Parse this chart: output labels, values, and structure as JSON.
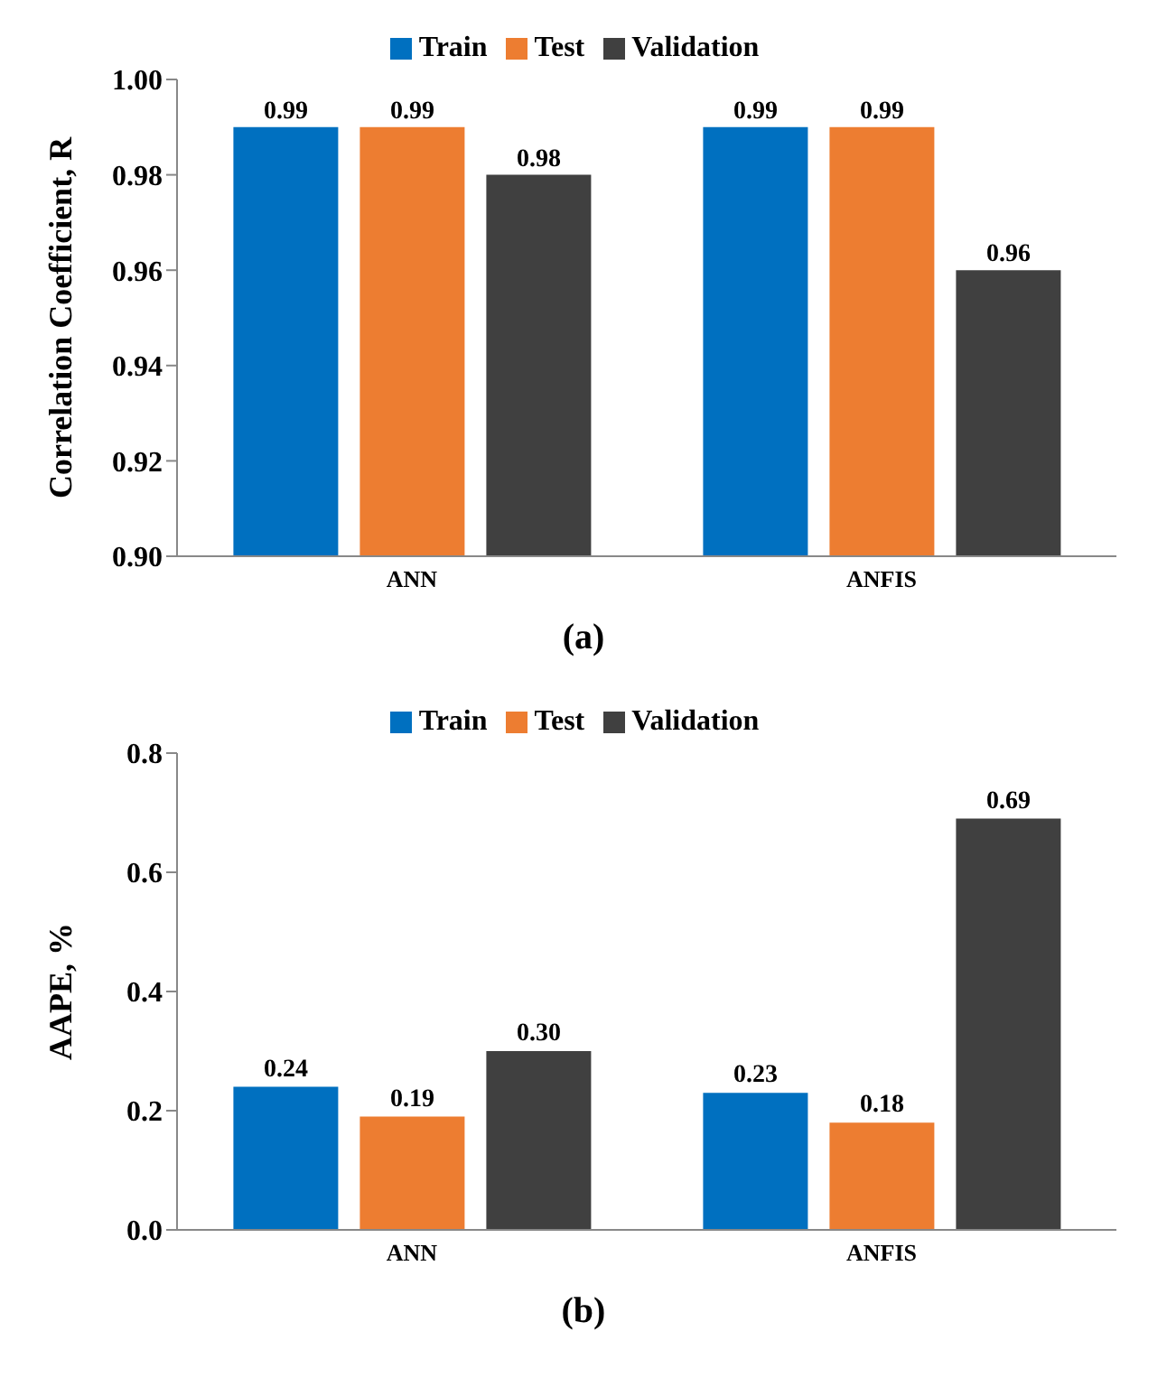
{
  "chart_data": [
    {
      "type": "bar",
      "ylabel": "Correlation Coefficient, R",
      "categories": [
        "ANN",
        "ANFIS"
      ],
      "series": [
        {
          "name": "Train",
          "color": "#0070c0",
          "values": [
            0.99,
            0.99
          ]
        },
        {
          "name": "Test",
          "color": "#ed7d31",
          "values": [
            0.99,
            0.99
          ]
        },
        {
          "name": "Validation",
          "color": "#404040",
          "values": [
            0.98,
            0.96
          ]
        }
      ],
      "ylim": [
        0.9,
        1.0
      ],
      "yticks": [
        {
          "value": 0.9,
          "label": "0.90"
        },
        {
          "value": 0.92,
          "label": "0.92"
        },
        {
          "value": 0.94,
          "label": "0.94"
        },
        {
          "value": 0.96,
          "label": "0.96"
        },
        {
          "value": 0.98,
          "label": "0.98"
        },
        {
          "value": 1.0,
          "label": "1.00"
        }
      ],
      "data_labels": true,
      "legend": "top",
      "grid": false,
      "annotations": [
        "(a)"
      ]
    },
    {
      "type": "bar",
      "ylabel": "AAPE, %",
      "categories": [
        "ANN",
        "ANFIS"
      ],
      "series": [
        {
          "name": "Train",
          "color": "#0070c0",
          "values": [
            0.24,
            0.23
          ],
          "value_labels": [
            "0.24",
            "0.23"
          ]
        },
        {
          "name": "Test",
          "color": "#ed7d31",
          "values": [
            0.19,
            0.18
          ],
          "value_labels": [
            "0.19",
            "0.18"
          ]
        },
        {
          "name": "Validation",
          "color": "#404040",
          "values": [
            0.3,
            0.69
          ],
          "value_labels": [
            "0.30",
            "0.69"
          ]
        }
      ],
      "ylim": [
        0,
        0.8
      ],
      "yticks": [
        {
          "value": 0,
          "label": "0.0"
        },
        {
          "value": 0.2,
          "label": "0.2"
        },
        {
          "value": 0.4,
          "label": "0.4"
        },
        {
          "value": 0.6,
          "label": "0.6"
        },
        {
          "value": 0.8,
          "label": "0.8"
        }
      ],
      "legend": "top",
      "grid": false,
      "annotations": [
        "(b)"
      ]
    }
  ]
}
